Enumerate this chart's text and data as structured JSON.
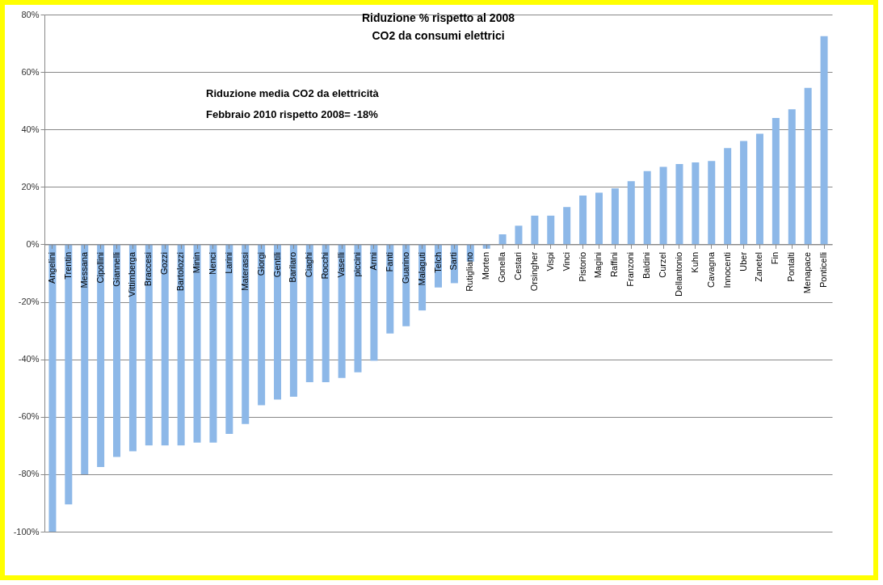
{
  "chart_data": {
    "type": "bar",
    "title": "Riduzione % rispetto al 2008",
    "subtitle": "CO2 da consumi elettrici",
    "annotations": [
      "Riduzione media CO2 da elettricità",
      "Febbraio 2010 rispetto 2008= -18%"
    ],
    "categories": [
      "Angelini",
      "Trentin",
      "Messana",
      "Cipollini",
      "Giannelli",
      "Vittimberga",
      "Braccesi",
      "Gozzi",
      "Bartolozzi",
      "Minin",
      "Nenci",
      "Larini",
      "Materassi",
      "Giorgi",
      "Gentili",
      "Barilaro",
      "Ciaghi",
      "Rocchi",
      "Vaselli",
      "piccini",
      "Armi",
      "Fanti",
      "Guarino",
      "Malaguti",
      "Telch",
      "Sarti",
      "Rutigliano",
      "Morten",
      "Gonella",
      "Cestari",
      "Orsingher",
      "Vispi",
      "Vinci",
      "Pistorio",
      "Magini",
      "Raffini",
      "Franzoni",
      "Baldini",
      "Curzel",
      "Dellantonio",
      "Kuhn",
      "Cavagna",
      "Innocenti",
      "Uber",
      "Zanetel",
      "Fin",
      "Pontalti",
      "Menapace",
      "Ponticelli"
    ],
    "values": [
      -100,
      -90.5,
      -80,
      -77.5,
      -74,
      -72,
      -70,
      -70,
      -70,
      -69,
      -69,
      -66,
      -62.5,
      -56,
      -54,
      -53,
      -48,
      -48,
      -46.5,
      -44.5,
      -40.5,
      -31,
      -28.5,
      -23,
      -15,
      -13.5,
      -6,
      -1.5,
      3.5,
      6.5,
      10,
      10,
      13,
      17,
      18,
      19.5,
      22,
      25.5,
      27,
      28,
      28.5,
      29,
      33.5,
      36,
      38.5,
      44,
      47,
      54.5,
      72.5
    ],
    "color": "#8db8e8",
    "ylim": [
      -100,
      80
    ],
    "yticks": [
      {
        "value": -100,
        "label": "-100%"
      },
      {
        "value": -80,
        "label": "-80%"
      },
      {
        "value": -60,
        "label": "-60%"
      },
      {
        "value": -40,
        "label": "-40%"
      },
      {
        "value": -20,
        "label": "-20%"
      },
      {
        "value": 0,
        "label": "0%"
      },
      {
        "value": 20,
        "label": "20%"
      },
      {
        "value": 40,
        "label": "40%"
      },
      {
        "value": 60,
        "label": "60%"
      },
      {
        "value": 80,
        "label": "80%"
      }
    ],
    "grid": "y"
  }
}
